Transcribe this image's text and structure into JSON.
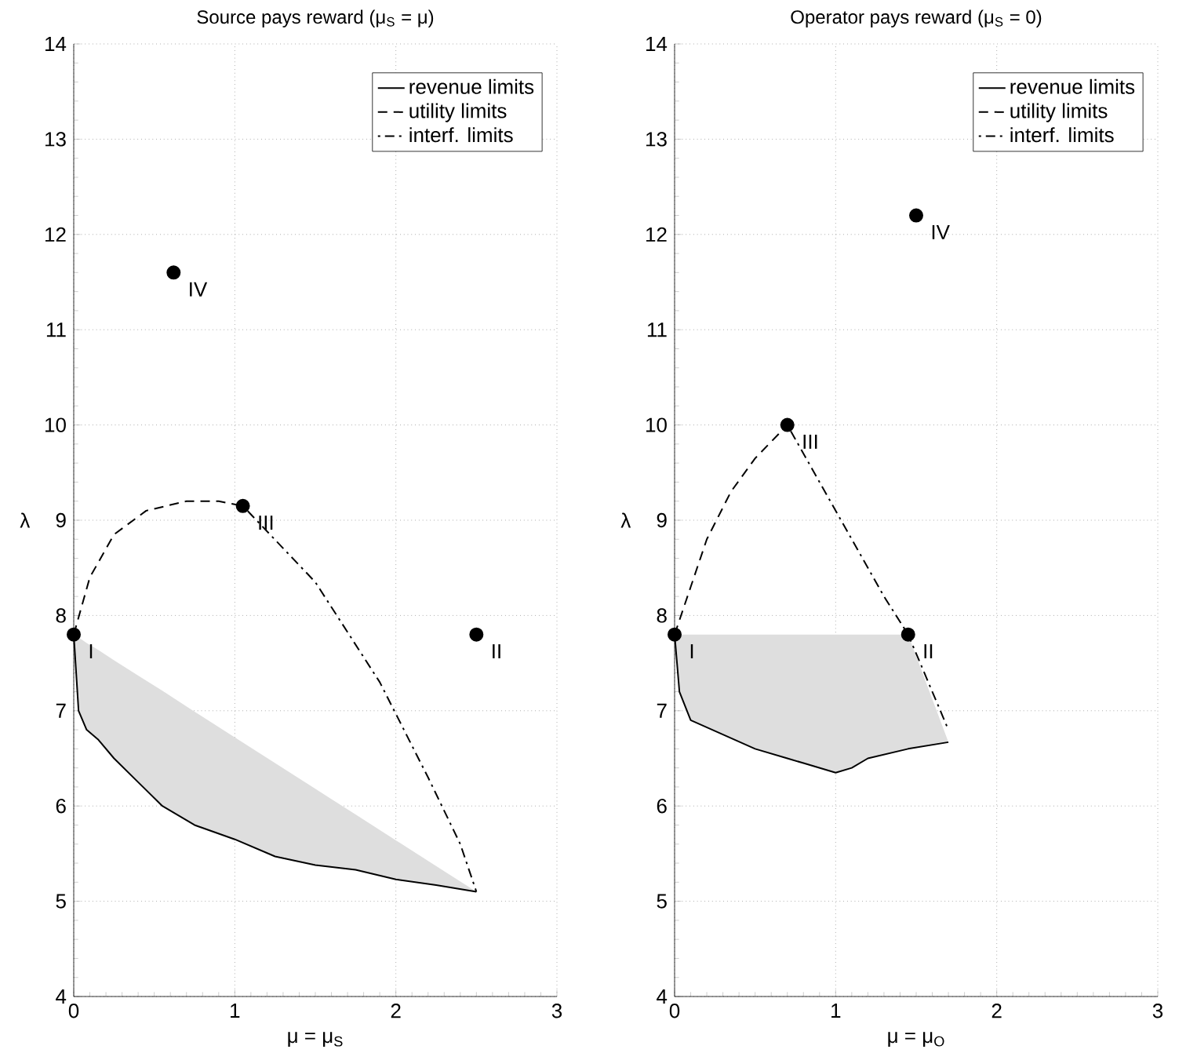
{
  "chart_data": [
    {
      "type": "line",
      "title": "Source pays reward (μ$_{S}$ = μ)",
      "xlabel": "μ = μ$_{S}$",
      "ylabel": "λ",
      "xlim": [
        0,
        3
      ],
      "ylim": [
        4,
        14
      ],
      "xticks": [
        0,
        1,
        2,
        3
      ],
      "yticks": [
        4,
        5,
        6,
        7,
        8,
        9,
        10,
        11,
        12,
        13,
        14
      ],
      "grid": true,
      "legend": "top right",
      "series": [
        {
          "name": "revenue limits",
          "color": "#000000",
          "line_style": "solid",
          "x": [
            0,
            0.03,
            0.08,
            0.15,
            0.25,
            0.4,
            0.55,
            0.75,
            1.0,
            1.25,
            1.5,
            1.75,
            2.0,
            2.25,
            2.5
          ],
          "values": [
            7.8,
            7.0,
            6.8,
            6.7,
            6.5,
            6.25,
            6.0,
            5.8,
            5.65,
            5.47,
            5.38,
            5.33,
            5.23,
            5.17,
            5.1
          ],
          "lower": [
            7.8,
            7.0,
            6.8,
            6.7,
            6.5,
            6.25,
            6.0,
            5.8,
            5.65,
            5.47,
            5.38,
            5.33,
            5.23,
            5.17,
            5.1
          ],
          "upper": [
            7.8,
            7.77,
            7.71,
            7.64,
            7.53,
            7.37,
            7.21,
            6.99,
            6.72,
            6.45,
            6.18,
            5.91,
            5.64,
            5.37,
            5.1
          ]
        },
        {
          "name": "utility limits",
          "color": "#000000",
          "line_style": "dashed",
          "x": [
            0,
            0.1,
            0.25,
            0.45,
            0.7,
            0.9,
            1.05
          ],
          "values": [
            7.8,
            8.4,
            8.85,
            9.1,
            9.2,
            9.2,
            9.15
          ]
        },
        {
          "name": "interf. limits",
          "color": "#000000",
          "line_style": "dashdot",
          "x": [
            1.05,
            1.5,
            1.9,
            2.2,
            2.4,
            2.5
          ],
          "values": [
            9.15,
            8.35,
            7.3,
            6.3,
            5.6,
            5.1
          ]
        },
        {
          "type": "scatter",
          "color": "#000000",
          "marker": "circle",
          "x": [
            0,
            2.5,
            1.05,
            0.62
          ],
          "values": [
            7.8,
            7.8,
            9.15,
            11.6
          ]
        }
      ],
      "annotations": [
        {
          "text": "I",
          "x": 0,
          "y": 7.8
        },
        {
          "text": "II",
          "x": 2.5,
          "y": 7.8
        },
        {
          "text": "III",
          "x": 1.05,
          "y": 9.15
        },
        {
          "text": "IV",
          "x": 0.62,
          "y": 11.6
        }
      ]
    },
    {
      "type": "line",
      "title": "Operator pays reward (μ$_{S}$ = 0)",
      "xlabel": "μ = μ$_{O}$",
      "ylabel": "λ",
      "xlim": [
        0,
        3
      ],
      "ylim": [
        4,
        14
      ],
      "xticks": [
        0,
        1,
        2,
        3
      ],
      "yticks": [
        4,
        5,
        6,
        7,
        8,
        9,
        10,
        11,
        12,
        13,
        14
      ],
      "grid": true,
      "legend": "top right",
      "series": [
        {
          "name": "revenue limits",
          "color": "#000000",
          "line_style": "solid",
          "x": [
            0,
            0.03,
            0.1,
            0.3,
            0.5,
            0.7,
            0.8,
            0.9,
            1.0,
            1.1,
            1.2,
            1.45,
            1.7
          ],
          "values": [
            7.8,
            7.2,
            6.9,
            6.75,
            6.6,
            6.5,
            6.45,
            6.4,
            6.35,
            6.4,
            6.5,
            6.6,
            6.67
          ],
          "lower": [
            7.8,
            7.2,
            6.9,
            6.75,
            6.6,
            6.5,
            6.45,
            6.4,
            6.35,
            6.4,
            6.5,
            6.6,
            6.67
          ],
          "upper": [
            7.8,
            7.8,
            7.8,
            7.8,
            7.8,
            7.8,
            7.8,
            7.8,
            7.8,
            7.8,
            7.8,
            7.8,
            6.67
          ]
        },
        {
          "name": "utility limits",
          "color": "#000000",
          "line_style": "dashed",
          "x": [
            0,
            0.1,
            0.2,
            0.35,
            0.5,
            0.7
          ],
          "values": [
            7.8,
            8.3,
            8.8,
            9.3,
            9.65,
            10.0
          ]
        },
        {
          "name": "interf. limits",
          "color": "#000000",
          "line_style": "dashdot",
          "x": [
            0.7,
            0.9,
            1.1,
            1.3,
            1.45,
            1.6,
            1.7
          ],
          "values": [
            10.0,
            9.4,
            8.8,
            8.2,
            7.8,
            7.2,
            6.8
          ]
        },
        {
          "type": "scatter",
          "color": "#000000",
          "marker": "circle",
          "x": [
            0,
            1.45,
            0.7,
            1.5
          ],
          "values": [
            7.8,
            7.8,
            10.0,
            12.2
          ]
        }
      ],
      "annotations": [
        {
          "text": "I",
          "x": 0,
          "y": 7.8
        },
        {
          "text": "II",
          "x": 1.45,
          "y": 7.8
        },
        {
          "text": "III",
          "x": 0.7,
          "y": 10.0
        },
        {
          "text": "IV",
          "x": 1.5,
          "y": 12.2
        }
      ]
    }
  ]
}
